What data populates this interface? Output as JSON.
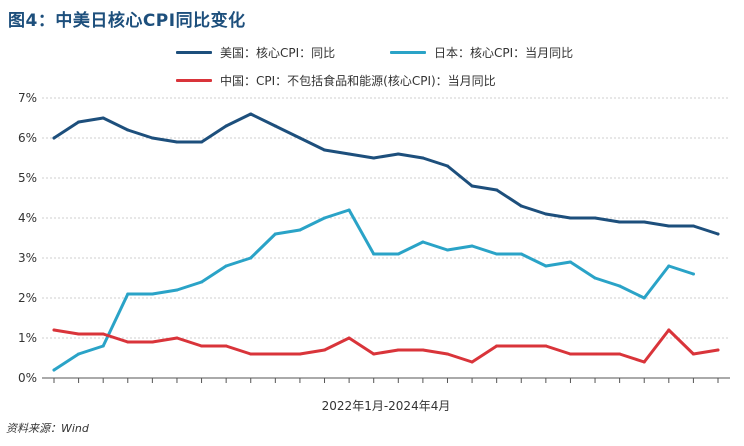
{
  "title": "图4：中美日核心CPI同比变化",
  "source": "资料来源：Wind",
  "colors": {
    "us": "#1d4f7c",
    "japan": "#2aa3c7",
    "china": "#d9343a",
    "grid": "#cfcfcf",
    "axis": "#555555"
  },
  "chart_data": {
    "type": "line",
    "title": "图4：中美日核心CPI同比变化",
    "xlabel": "2022年1月-2024年4月",
    "ylabel": "",
    "ylim": [
      0,
      7
    ],
    "y_ticks": [
      "0%",
      "1%",
      "2%",
      "3%",
      "4%",
      "5%",
      "6%",
      "7%"
    ],
    "x": [
      "2022-01",
      "2022-02",
      "2022-03",
      "2022-04",
      "2022-05",
      "2022-06",
      "2022-07",
      "2022-08",
      "2022-09",
      "2022-10",
      "2022-11",
      "2022-12",
      "2023-01",
      "2023-02",
      "2023-03",
      "2023-04",
      "2023-05",
      "2023-06",
      "2023-07",
      "2023-08",
      "2023-09",
      "2023-10",
      "2023-11",
      "2023-12",
      "2024-01",
      "2024-02",
      "2024-03",
      "2024-04"
    ],
    "legend": [
      {
        "name": "美国：核心CPI：同比",
        "key": "us"
      },
      {
        "name": "日本：核心CPI：当月同比",
        "key": "japan"
      },
      {
        "name": "中国：CPI：不包括食品和能源(核心CPI)：当月同比",
        "key": "china"
      }
    ],
    "series": [
      {
        "name": "美国：核心CPI：同比",
        "key": "us",
        "values": [
          6.0,
          6.4,
          6.5,
          6.2,
          6.0,
          5.9,
          5.9,
          6.3,
          6.6,
          6.3,
          6.0,
          5.7,
          5.6,
          5.5,
          5.6,
          5.5,
          5.3,
          4.8,
          4.7,
          4.3,
          4.1,
          4.0,
          4.0,
          3.9,
          3.9,
          3.8,
          3.8,
          3.6
        ]
      },
      {
        "name": "日本：核心CPI：当月同比",
        "key": "japan",
        "values": [
          0.2,
          0.6,
          0.8,
          2.1,
          2.1,
          2.2,
          2.4,
          2.8,
          3.0,
          3.6,
          3.7,
          4.0,
          4.2,
          3.1,
          3.1,
          3.4,
          3.2,
          3.3,
          3.1,
          3.1,
          2.8,
          2.9,
          2.5,
          2.3,
          2.0,
          2.8,
          2.6,
          null
        ]
      },
      {
        "name": "中国：CPI：不包括食品和能源(核心CPI)：当月同比",
        "key": "china",
        "values": [
          1.2,
          1.1,
          1.1,
          0.9,
          0.9,
          1.0,
          0.8,
          0.8,
          0.6,
          0.6,
          0.6,
          0.7,
          1.0,
          0.6,
          0.7,
          0.7,
          0.6,
          0.4,
          0.8,
          0.8,
          0.8,
          0.6,
          0.6,
          0.6,
          0.4,
          1.2,
          0.6,
          0.7
        ]
      }
    ]
  }
}
